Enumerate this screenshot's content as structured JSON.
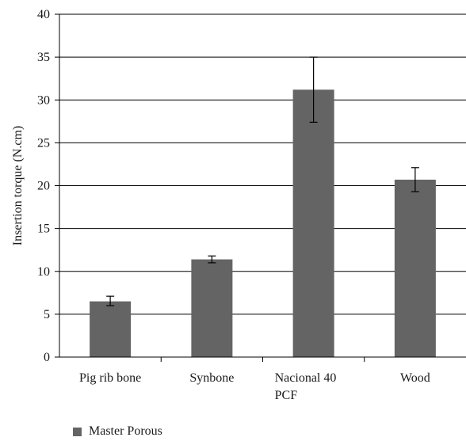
{
  "chart_data": {
    "type": "bar",
    "categories": [
      [
        "Pig rib bone"
      ],
      [
        "Synbone"
      ],
      [
        "Nacional 40",
        "PCF"
      ],
      [
        "Wood"
      ]
    ],
    "series": [
      {
        "name": "Master Porous",
        "values": [
          6.5,
          11.4,
          31.2,
          20.7
        ],
        "error_low": [
          6.0,
          11.0,
          27.4,
          19.3
        ],
        "error_high": [
          7.1,
          11.8,
          35.0,
          22.1
        ]
      }
    ],
    "ylabel": "Insertion torque (N.cm)",
    "xlabel": "",
    "ylim": [
      0,
      40
    ],
    "yticks": [
      0,
      5,
      10,
      15,
      20,
      25,
      30,
      35,
      40
    ],
    "grid": "horizontal",
    "legend_position": "bottom-left",
    "colors": {
      "bar": "#646464",
      "grid": "#000000",
      "axis": "#000000"
    }
  }
}
